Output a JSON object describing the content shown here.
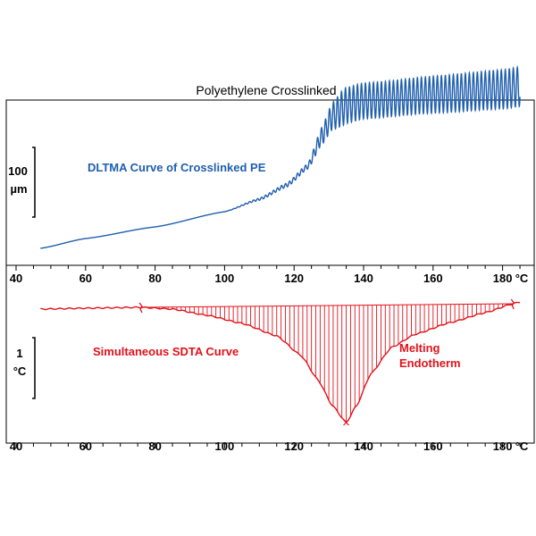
{
  "chart_data": [
    {
      "type": "line",
      "title": "Polyethylene Crosslinked",
      "series_name": "DLTMA Curve of Crosslinked PE",
      "xlabel": "°C",
      "x_ticks": [
        40,
        60,
        80,
        100,
        120,
        140,
        160,
        180
      ],
      "xlim": [
        40,
        185
      ],
      "scale_bar": {
        "value": "100",
        "unit": "µm"
      },
      "color": "#1f5fae",
      "modulation": {
        "onset_x": 124,
        "period_x": 1.15
      },
      "points": [
        {
          "x": 47,
          "y": 0
        },
        {
          "x": 60,
          "y": 11
        },
        {
          "x": 80,
          "y": 24
        },
        {
          "x": 100,
          "y": 41
        },
        {
          "x": 110,
          "y": 55
        },
        {
          "x": 118,
          "y": 71
        },
        {
          "x": 124,
          "y": 92
        },
        {
          "x": 128,
          "y": 126
        },
        {
          "x": 131,
          "y": 148
        },
        {
          "x": 135,
          "y": 160
        },
        {
          "x": 140,
          "y": 165
        },
        {
          "x": 160,
          "y": 172
        },
        {
          "x": 180,
          "y": 178
        },
        {
          "x": 185,
          "y": 181
        }
      ]
    },
    {
      "type": "area",
      "title": "Simultaneous SDTA Curve",
      "annotation": "Melting Endotherm",
      "xlabel": "°C",
      "x_ticks": [
        40,
        60,
        80,
        100,
        120,
        140,
        160,
        180
      ],
      "xlim": [
        40,
        185
      ],
      "scale_bar": {
        "value": "1",
        "unit": "°C"
      },
      "color": "#e2121b",
      "integration_limits": [
        76,
        183
      ],
      "peak": {
        "x": 135,
        "y": -129
      },
      "points": [
        {
          "x": 47,
          "y": -2
        },
        {
          "x": 60,
          "y": -1
        },
        {
          "x": 76,
          "y": 0
        },
        {
          "x": 85,
          "y": -2
        },
        {
          "x": 95,
          "y": -9
        },
        {
          "x": 105,
          "y": -18
        },
        {
          "x": 115,
          "y": -32
        },
        {
          "x": 122,
          "y": -54
        },
        {
          "x": 127,
          "y": -82
        },
        {
          "x": 131,
          "y": -110
        },
        {
          "x": 135,
          "y": -129
        },
        {
          "x": 138,
          "y": -110
        },
        {
          "x": 142,
          "y": -75
        },
        {
          "x": 148,
          "y": -45
        },
        {
          "x": 155,
          "y": -30
        },
        {
          "x": 165,
          "y": -17
        },
        {
          "x": 175,
          "y": -6
        },
        {
          "x": 183,
          "y": 4
        },
        {
          "x": 185,
          "y": 6
        }
      ]
    }
  ]
}
